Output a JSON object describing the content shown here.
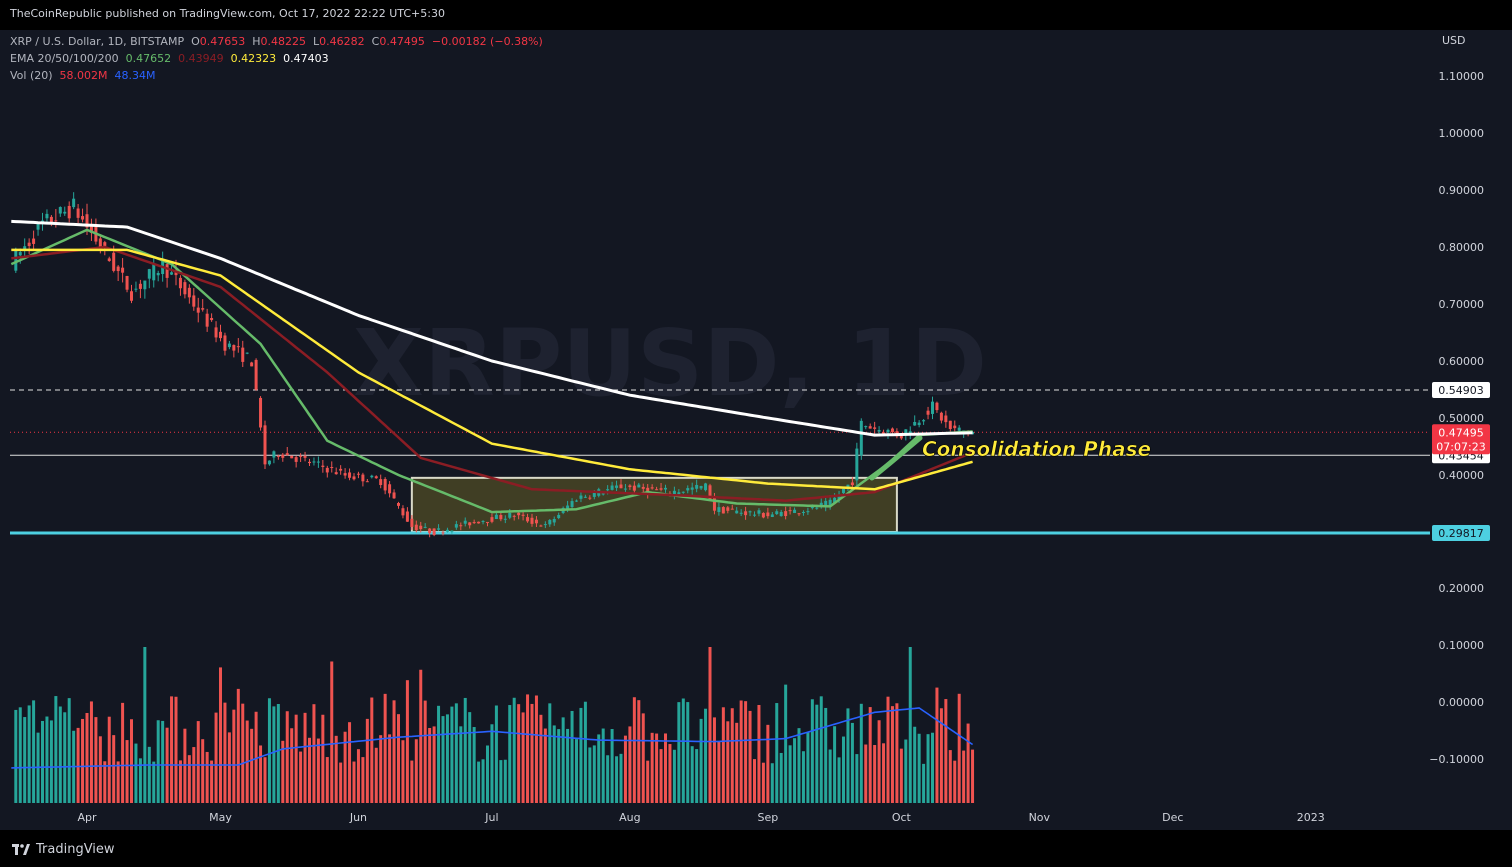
{
  "publisher": "TheCoinRepublic published on TradingView.com, Oct 17, 2022 22:22 UTC+5:30",
  "legend": {
    "symbol": "XRP / U.S. Dollar, 1D, BITSTAMP",
    "o_label": "O",
    "o": "0.47653",
    "h_label": "H",
    "h": "0.48225",
    "l_label": "L",
    "l": "0.46282",
    "c_label": "C",
    "c": "0.47495",
    "change": "−0.00182 (−0.38%)",
    "ema_label": "EMA 20/50/100/200",
    "ema20": "0.47652",
    "ema50": "0.43949",
    "ema100": "0.42323",
    "ema200": "0.47403",
    "vol_label": "Vol (20)",
    "vol": "58.002M",
    "vol_ma": "48.34M"
  },
  "watermark": "XRPUSD, 1D",
  "annotation": "Consolidation Phase",
  "footer": {
    "brand": "TradingView"
  },
  "colors": {
    "background": "#131722",
    "up": "#26a69a",
    "down": "#ef5350",
    "ema20": "#66bb6a",
    "ema50": "#8b1d24",
    "ema100": "#ffeb3b",
    "ema200": "#ffffff",
    "support": "#4dd0e1",
    "vol_ma": "#2962ff",
    "price_badge": "#f23645"
  },
  "chart_data": {
    "type": "candlestick",
    "currency": "USD",
    "y_ticks": [
      "1.10000",
      "1.00000",
      "0.90000",
      "0.80000",
      "0.70000",
      "0.60000",
      "0.50000",
      "0.40000",
      "0.20000",
      "0.10000",
      "0.00000",
      "−0.10000"
    ],
    "y_tick_values": [
      1.1,
      1.0,
      0.9,
      0.8,
      0.7,
      0.6,
      0.5,
      0.4,
      0.2,
      0.1,
      0.0,
      -0.1
    ],
    "x_ticks": [
      "Apr",
      "May",
      "Jun",
      "Jul",
      "Aug",
      "Sep",
      "Oct",
      "Nov",
      "Dec",
      "2023"
    ],
    "x_tick_dates": [
      "2022-04-01",
      "2022-05-01",
      "2022-06-01",
      "2022-07-01",
      "2022-08-01",
      "2022-09-01",
      "2022-10-01",
      "2022-11-01",
      "2022-12-01",
      "2023-01-01"
    ],
    "date_range": [
      "2022-03-15",
      "2023-01-31"
    ],
    "last_date": "2022-10-17",
    "levels": [
      {
        "value": 0.54903,
        "label": "0.54903",
        "style": "dashed"
      },
      {
        "value": 0.43454,
        "label": "0.43454",
        "style": "solid"
      },
      {
        "value": 0.29817,
        "label": "0.29817",
        "style": "support"
      }
    ],
    "current_price": {
      "value": 0.47495,
      "label": "0.47495",
      "countdown": "07:07:23"
    },
    "consolidation_box": {
      "start": "2022-06-13",
      "end": "2022-09-30",
      "top": 0.395,
      "bottom": 0.3
    },
    "price_keypoints": [
      {
        "date": "2022-03-15",
        "close": 0.77
      },
      {
        "date": "2022-03-22",
        "close": 0.84
      },
      {
        "date": "2022-03-29",
        "close": 0.87
      },
      {
        "date": "2022-04-05",
        "close": 0.79
      },
      {
        "date": "2022-04-11",
        "close": 0.72
      },
      {
        "date": "2022-04-18",
        "close": 0.77
      },
      {
        "date": "2022-04-25",
        "close": 0.7
      },
      {
        "date": "2022-05-02",
        "close": 0.63
      },
      {
        "date": "2022-05-08",
        "close": 0.6
      },
      {
        "date": "2022-05-11",
        "close": 0.42
      },
      {
        "date": "2022-05-14",
        "close": 0.44
      },
      {
        "date": "2022-05-22",
        "close": 0.42
      },
      {
        "date": "2022-05-29",
        "close": 0.4
      },
      {
        "date": "2022-06-06",
        "close": 0.39
      },
      {
        "date": "2022-06-13",
        "close": 0.31
      },
      {
        "date": "2022-06-18",
        "close": 0.3
      },
      {
        "date": "2022-06-28",
        "close": 0.32
      },
      {
        "date": "2022-07-06",
        "close": 0.33
      },
      {
        "date": "2022-07-13",
        "close": 0.31
      },
      {
        "date": "2022-07-20",
        "close": 0.36
      },
      {
        "date": "2022-07-30",
        "close": 0.38
      },
      {
        "date": "2022-08-10",
        "close": 0.37
      },
      {
        "date": "2022-08-18",
        "close": 0.38
      },
      {
        "date": "2022-08-20",
        "close": 0.34
      },
      {
        "date": "2022-09-01",
        "close": 0.33
      },
      {
        "date": "2022-09-10",
        "close": 0.34
      },
      {
        "date": "2022-09-15",
        "close": 0.35
      },
      {
        "date": "2022-09-20",
        "close": 0.39
      },
      {
        "date": "2022-09-22",
        "close": 0.49
      },
      {
        "date": "2022-09-26",
        "close": 0.48
      },
      {
        "date": "2022-10-01",
        "close": 0.47
      },
      {
        "date": "2022-10-08",
        "close": 0.52
      },
      {
        "date": "2022-10-12",
        "close": 0.48
      },
      {
        "date": "2022-10-17",
        "close": 0.47495
      }
    ],
    "ema_keypoints": {
      "ema20": [
        [
          "2022-03-15",
          0.77
        ],
        [
          "2022-04-01",
          0.83
        ],
        [
          "2022-04-20",
          0.77
        ],
        [
          "2022-05-10",
          0.63
        ],
        [
          "2022-05-25",
          0.46
        ],
        [
          "2022-06-10",
          0.4
        ],
        [
          "2022-07-01",
          0.335
        ],
        [
          "2022-07-20",
          0.34
        ],
        [
          "2022-08-05",
          0.37
        ],
        [
          "2022-08-25",
          0.35
        ],
        [
          "2022-09-15",
          0.345
        ],
        [
          "2022-09-28",
          0.42
        ],
        [
          "2022-10-05",
          0.47
        ],
        [
          "2022-10-17",
          0.4765
        ]
      ],
      "ema50": [
        [
          "2022-03-15",
          0.78
        ],
        [
          "2022-04-05",
          0.8
        ],
        [
          "2022-05-01",
          0.73
        ],
        [
          "2022-05-25",
          0.58
        ],
        [
          "2022-06-15",
          0.43
        ],
        [
          "2022-07-10",
          0.375
        ],
        [
          "2022-08-10",
          0.365
        ],
        [
          "2022-09-05",
          0.355
        ],
        [
          "2022-09-25",
          0.37
        ],
        [
          "2022-10-17",
          0.4395
        ]
      ],
      "ema100": [
        [
          "2022-03-15",
          0.795
        ],
        [
          "2022-04-10",
          0.795
        ],
        [
          "2022-05-01",
          0.75
        ],
        [
          "2022-06-01",
          0.58
        ],
        [
          "2022-07-01",
          0.455
        ],
        [
          "2022-08-01",
          0.41
        ],
        [
          "2022-09-01",
          0.385
        ],
        [
          "2022-09-25",
          0.375
        ],
        [
          "2022-10-17",
          0.4232
        ]
      ],
      "ema200": [
        [
          "2022-03-15",
          0.845
        ],
        [
          "2022-04-10",
          0.835
        ],
        [
          "2022-05-01",
          0.78
        ],
        [
          "2022-06-01",
          0.68
        ],
        [
          "2022-07-01",
          0.6
        ],
        [
          "2022-08-01",
          0.54
        ],
        [
          "2022-09-01",
          0.5
        ],
        [
          "2022-09-25",
          0.47
        ],
        [
          "2022-10-17",
          0.474
        ]
      ]
    },
    "volume": {
      "pane_value_range": [
        -0.1,
        0.1
      ],
      "note_shape": "relative heights 0-1 of max bar",
      "ma_keypoints": [
        [
          "2022-03-15",
          0.24
        ],
        [
          "2022-04-15",
          0.26
        ],
        [
          "2022-05-05",
          0.26
        ],
        [
          "2022-05-15",
          0.37
        ],
        [
          "2022-06-10",
          0.45
        ],
        [
          "2022-07-01",
          0.49
        ],
        [
          "2022-07-25",
          0.43
        ],
        [
          "2022-08-20",
          0.42
        ],
        [
          "2022-09-05",
          0.44
        ],
        [
          "2022-09-25",
          0.62
        ],
        [
          "2022-10-05",
          0.65
        ],
        [
          "2022-10-17",
          0.4
        ]
      ]
    }
  }
}
